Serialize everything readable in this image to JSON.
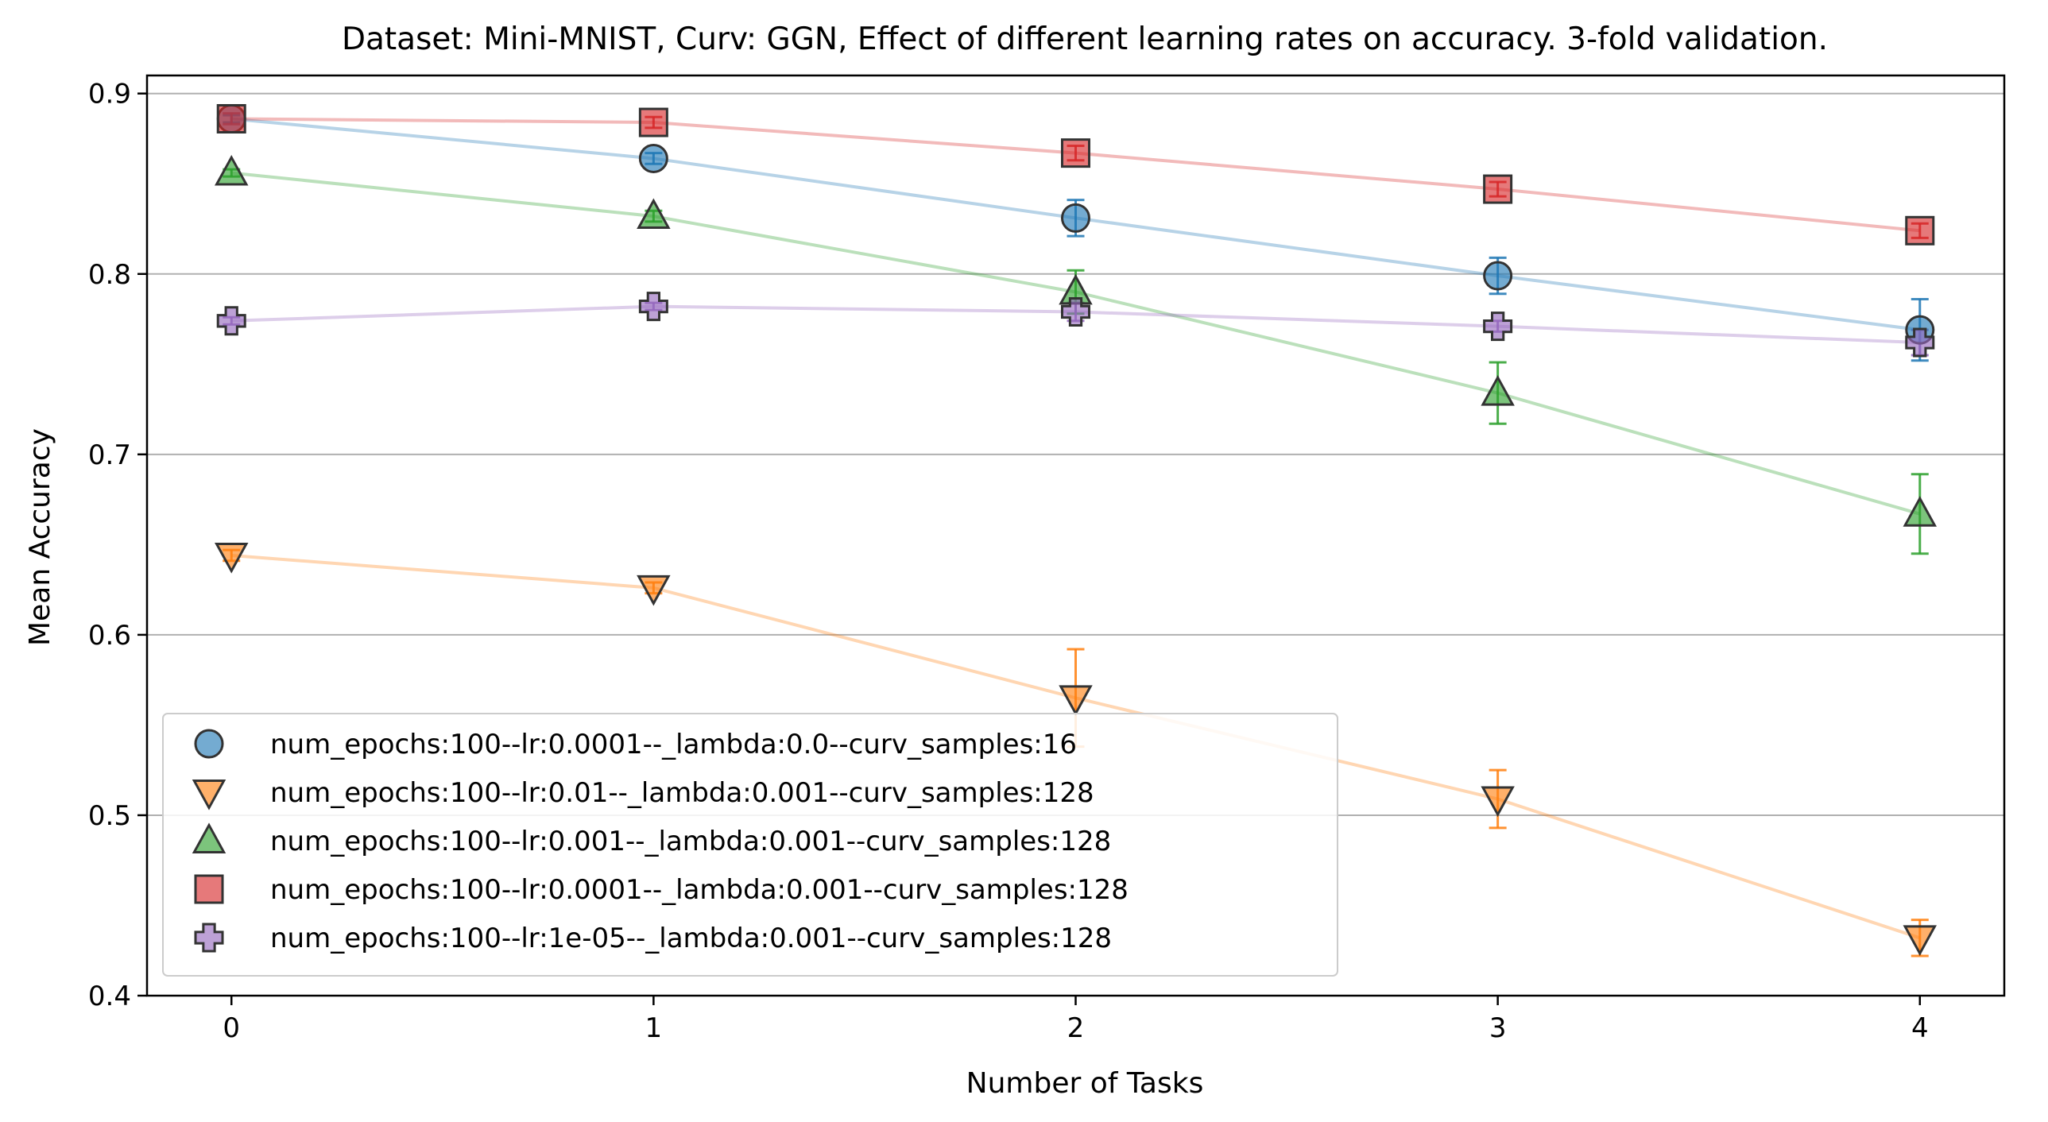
{
  "chart_data": {
    "type": "line",
    "title": "Dataset: Mini-MNIST, Curv: GGN, Effect of different learning rates on accuracy. 3-fold validation.",
    "xlabel": "Number of Tasks",
    "ylabel": "Mean Accuracy",
    "x": [
      0,
      1,
      2,
      3,
      4
    ],
    "xticks": [
      "0",
      "1",
      "2",
      "3",
      "4"
    ],
    "yticks": [
      "0.4",
      "0.5",
      "0.6",
      "0.7",
      "0.8",
      "0.9"
    ],
    "ytick_values": [
      0.4,
      0.5,
      0.6,
      0.7,
      0.8,
      0.9
    ],
    "xlim": [
      -0.2,
      4.2
    ],
    "ylim": [
      0.4,
      0.91
    ],
    "grid": "horizontal",
    "legend_position": "lower-left",
    "series": [
      {
        "name": "num_epochs:100--lr:0.0001--_lambda:0.0--curv_samples:16",
        "color": "#1f77b4",
        "marker": "circle",
        "values": [
          0.886,
          0.864,
          0.831,
          0.799,
          0.769
        ],
        "errors": [
          0.002,
          0.003,
          0.01,
          0.01,
          0.017
        ]
      },
      {
        "name": "num_epochs:100--lr:0.01--_lambda:0.001--curv_samples:128",
        "color": "#ff7f0e",
        "marker": "triangle-down",
        "values": [
          0.644,
          0.626,
          0.565,
          0.509,
          0.432
        ],
        "errors": [
          0.003,
          0.003,
          0.027,
          0.016,
          0.01
        ]
      },
      {
        "name": "num_epochs:100--lr:0.001--_lambda:0.001--curv_samples:128",
        "color": "#2ca02c",
        "marker": "triangle-up",
        "values": [
          0.856,
          0.832,
          0.79,
          0.734,
          0.667
        ],
        "errors": [
          0.002,
          0.003,
          0.012,
          0.017,
          0.022
        ]
      },
      {
        "name": "num_epochs:100--lr:0.0001--_lambda:0.001--curv_samples:128",
        "color": "#d62728",
        "marker": "square",
        "values": [
          0.886,
          0.884,
          0.867,
          0.847,
          0.824
        ],
        "errors": [
          0.003,
          0.003,
          0.004,
          0.004,
          0.004
        ]
      },
      {
        "name": "num_epochs:100--lr:1e-05--_lambda:0.001--curv_samples:128",
        "color": "#9467bd",
        "marker": "plus",
        "values": [
          0.774,
          0.782,
          0.779,
          0.771,
          0.762
        ],
        "errors": [
          0.002,
          0.002,
          0.005,
          0.003,
          0.007
        ]
      }
    ]
  }
}
